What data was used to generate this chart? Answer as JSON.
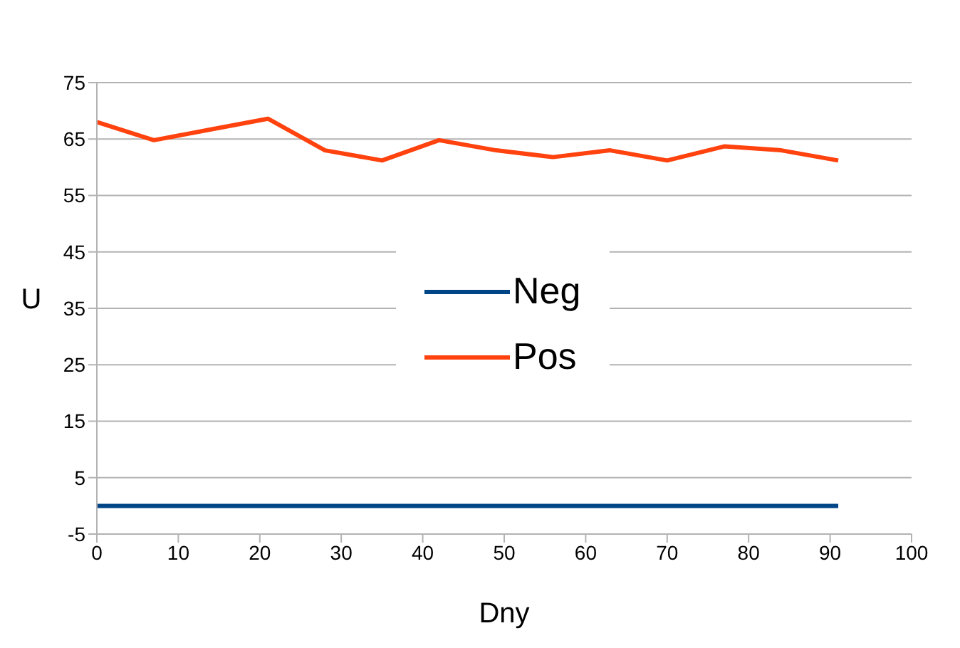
{
  "chart_data": {
    "type": "line",
    "xlabel": "Dny",
    "ylabel": "U",
    "x": [
      0,
      7,
      14,
      21,
      28,
      35,
      42,
      49,
      56,
      63,
      70,
      77,
      84,
      91
    ],
    "series": [
      {
        "name": "Neg",
        "color": "#004586",
        "values": [
          0,
          0,
          0,
          0,
          0,
          0,
          0,
          0,
          0,
          0,
          0,
          0,
          0,
          0
        ]
      },
      {
        "name": "Pos",
        "color": "#ff420e",
        "values": [
          68,
          64.8,
          66.7,
          68.6,
          63,
          61.2,
          64.8,
          63,
          61.8,
          63,
          61.2,
          63.7,
          63,
          61.2
        ]
      }
    ],
    "xlim": [
      0,
      100
    ],
    "xticks": [
      0,
      10,
      20,
      30,
      40,
      50,
      60,
      70,
      80,
      90,
      100
    ],
    "ylim": [
      -5,
      75
    ],
    "yticks": [
      -5,
      5,
      15,
      25,
      35,
      45,
      55,
      65,
      75
    ],
    "grid": "y",
    "legend": "center",
    "marker": "none",
    "line_style": "solid"
  }
}
